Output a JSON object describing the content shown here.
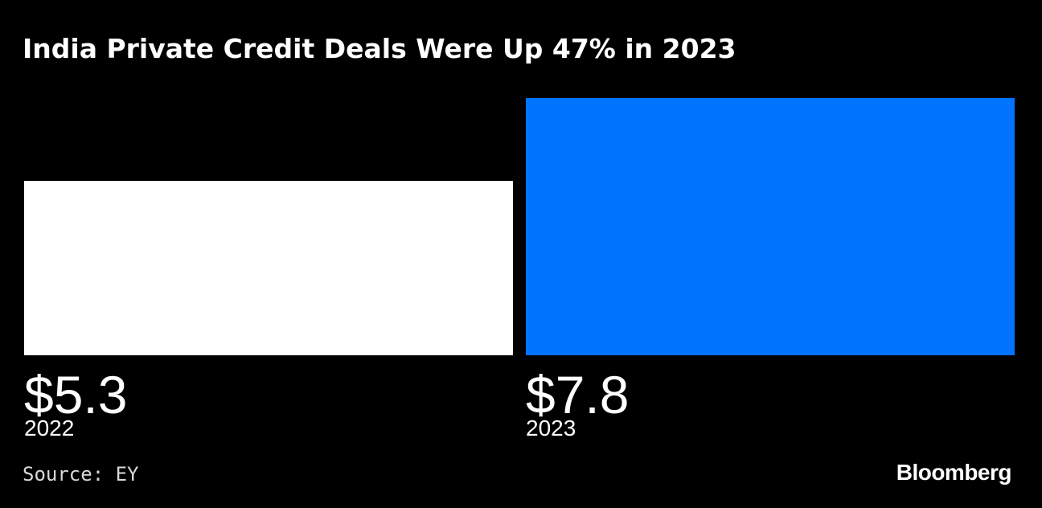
{
  "title": "India Private Credit Deals Were Up 47% in 2023",
  "source": "Source: EY",
  "logo": "Bloomberg",
  "colors": {
    "background": "#000000",
    "bar_2022": "#ffffff",
    "bar_2023": "#0073ff",
    "text": "#ffffff"
  },
  "chart_data": {
    "type": "bar",
    "title": "India Private Credit Deals Were Up 47% in 2023",
    "xlabel": "",
    "ylabel": "",
    "categories": [
      "2022",
      "2023"
    ],
    "values": [
      5.3,
      7.8
    ],
    "value_labels": [
      "$5.3",
      "$7.8"
    ],
    "bar_colors": [
      "#ffffff",
      "#0073ff"
    ],
    "ylim": [
      0,
      7.8
    ],
    "grid": false,
    "legend": "none"
  }
}
